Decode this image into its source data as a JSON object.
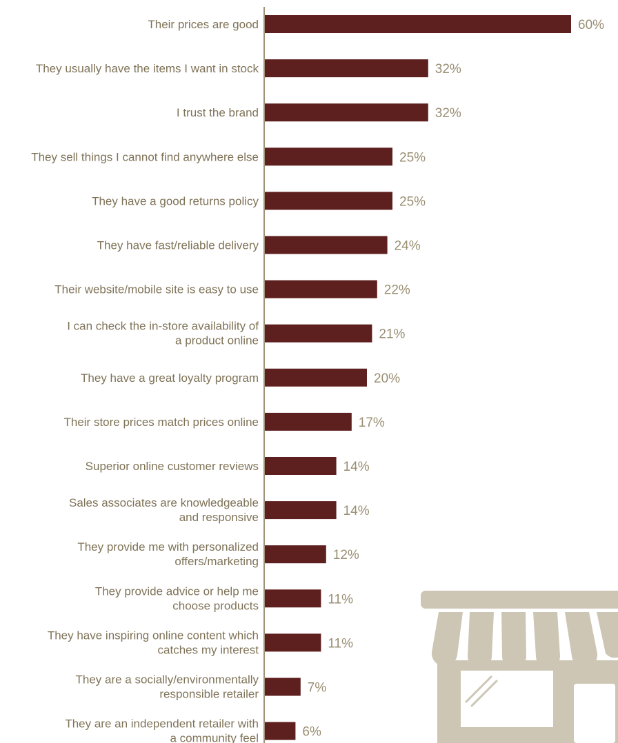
{
  "chart_data": {
    "type": "bar",
    "orientation": "horizontal",
    "title": "",
    "xlabel": "",
    "ylabel": "",
    "xlim": [
      0,
      60
    ],
    "grid": false,
    "legend": "none",
    "value_suffix": "%",
    "bar_color": "#5e1f1f",
    "axis_color": "#9e9278",
    "categories": [
      [
        "Their prices are good"
      ],
      [
        "They usually have the items I want in stock"
      ],
      [
        "I trust the brand"
      ],
      [
        "They sell things I cannot find anywhere else"
      ],
      [
        "They have a good returns policy"
      ],
      [
        "They have fast/reliable delivery"
      ],
      [
        "Their website/mobile site is easy to use"
      ],
      [
        "I can check the in-store availability of",
        "a product online"
      ],
      [
        "They have a great loyalty program"
      ],
      [
        "Their store prices match prices online"
      ],
      [
        "Superior online customer reviews"
      ],
      [
        "Sales associates are knowledgeable",
        "and responsive"
      ],
      [
        "They provide me with personalized",
        "offers/marketing"
      ],
      [
        "They provide advice or help me",
        "choose products"
      ],
      [
        "They have inspiring online content which",
        "catches my interest"
      ],
      [
        "They are a socially/environmentally",
        "responsible retailer"
      ],
      [
        "They are an independent retailer with",
        "a community feel"
      ]
    ],
    "values": [
      60,
      32,
      32,
      25,
      25,
      24,
      22,
      21,
      20,
      17,
      14,
      14,
      12,
      11,
      11,
      7,
      6
    ],
    "value_labels": [
      "60%",
      "32%",
      "32%",
      "25%",
      "25%",
      "24%",
      "22%",
      "21%",
      "20%",
      "17%",
      "14%",
      "14%",
      "12%",
      "11%",
      "11%",
      "7%",
      "6%"
    ]
  },
  "decoration": {
    "icon": "storefront-icon",
    "icon_color": "#cdc6b5"
  }
}
